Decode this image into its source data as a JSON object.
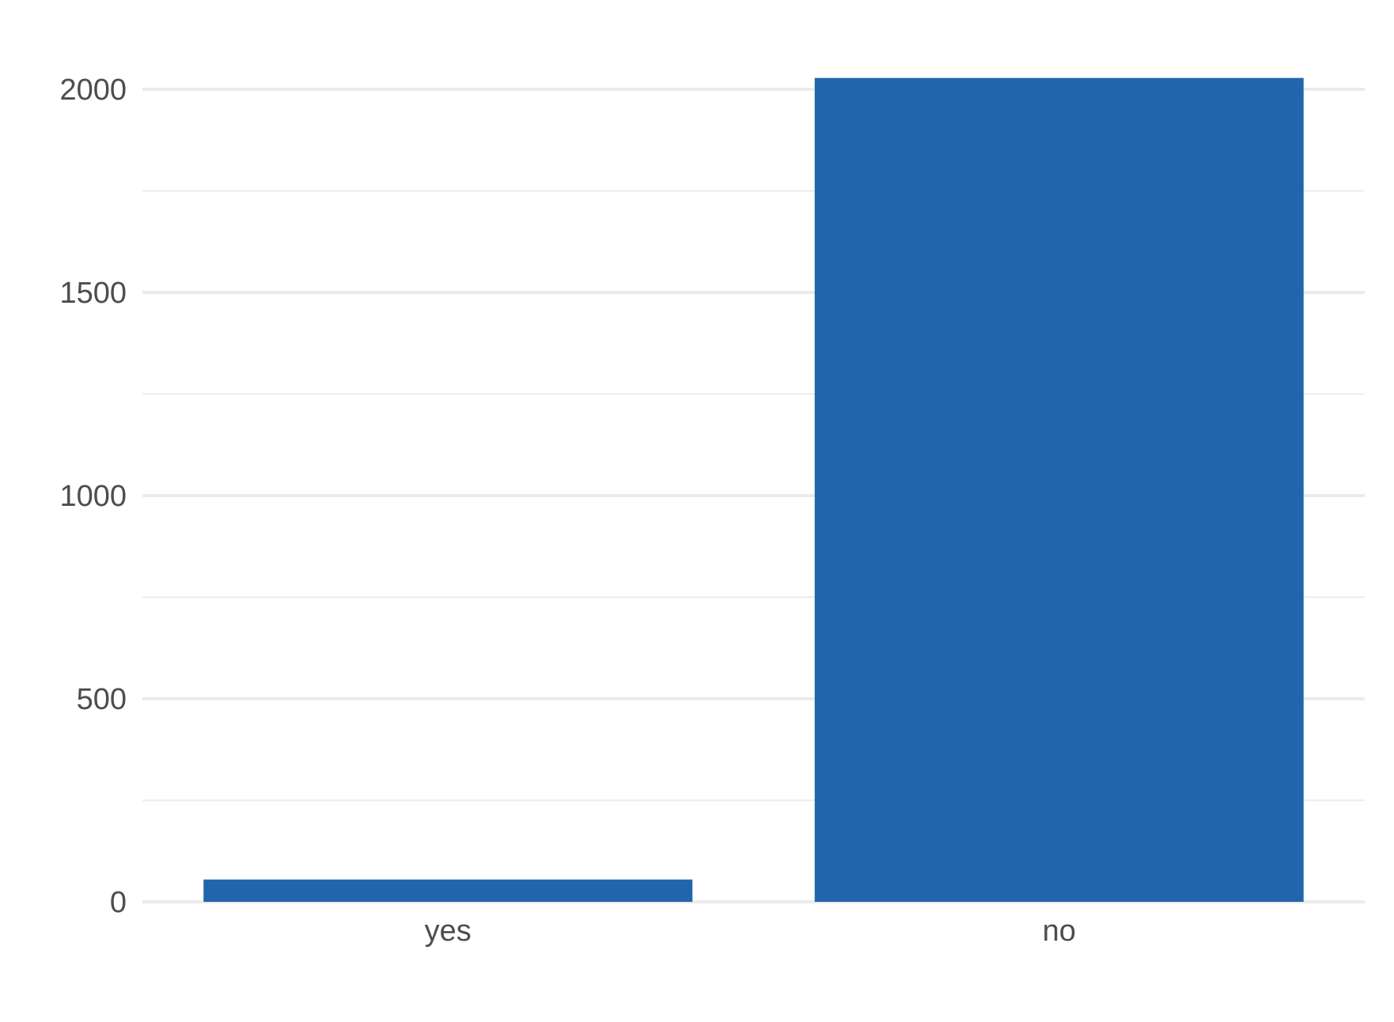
{
  "chart_data": {
    "type": "bar",
    "title": "",
    "xlabel": "",
    "ylabel": "",
    "categories": [
      "yes",
      "no"
    ],
    "values": [
      55,
      2028
    ],
    "ylim": [
      0,
      2100
    ],
    "yticks": [
      0,
      500,
      1000,
      1500,
      2000
    ],
    "ytick_labels": [
      "0",
      "500",
      "1000",
      "1500",
      "2000"
    ],
    "grid": true,
    "legend": "none",
    "bar_color": "#2166ac",
    "grid_color": "#ebebeb",
    "tick_label_color": "#4d4d4d"
  }
}
